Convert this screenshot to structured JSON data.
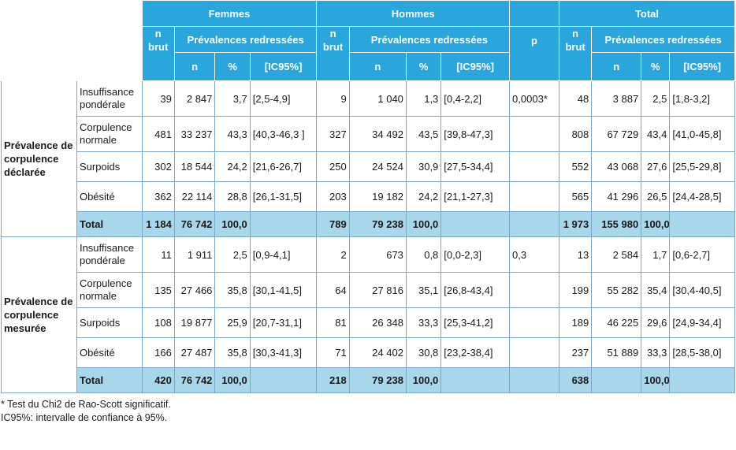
{
  "headers": {
    "femmes": "Femmes",
    "hommes": "Hommes",
    "total": "Total",
    "n_brut_top": "n",
    "n_brut_bottom": "brut",
    "prev_redressees": "Prévalences redressées",
    "p": "p",
    "n": "n",
    "pct": "%",
    "ic": "[IC95%]"
  },
  "groups": [
    {
      "label": "Prévalence de corpulence déclarée",
      "rows": [
        {
          "cat": "Insuffisance pondérale",
          "f_brut": "39",
          "f_n": "2 847",
          "f_pct": "3,7",
          "f_ic": "[2,5-4,9]",
          "h_brut": "9",
          "h_n": "1 040",
          "h_pct": "1,3",
          "h_ic": "[0,4-2,2]",
          "p": "0,0003*",
          "t_brut": "48",
          "t_n": "3 887",
          "t_pct": "2,5",
          "t_ic": "[1,8-3,2]"
        },
        {
          "cat": "Corpulence normale",
          "f_brut": "481",
          "f_n": "33 237",
          "f_pct": "43,3",
          "f_ic": "[40,3-46,3 ]",
          "h_brut": "327",
          "h_n": "34 492",
          "h_pct": "43,5",
          "h_ic": "[39,8-47,3]",
          "p": "",
          "t_brut": "808",
          "t_n": "67 729",
          "t_pct": "43,4",
          "t_ic": "[41,0-45,8]"
        },
        {
          "cat": "Surpoids",
          "f_brut": "302",
          "f_n": "18 544",
          "f_pct": "24,2",
          "f_ic": "[21,6-26,7]",
          "h_brut": "250",
          "h_n": "24 524",
          "h_pct": "30,9",
          "h_ic": "[27,5-34,4]",
          "p": "",
          "t_brut": "552",
          "t_n": "43 068",
          "t_pct": "27,6",
          "t_ic": "[25,5-29,8]"
        },
        {
          "cat": "Obésité",
          "f_brut": "362",
          "f_n": "22 114",
          "f_pct": "28,8",
          "f_ic": "[26,1-31,5]",
          "h_brut": "203",
          "h_n": "19 182",
          "h_pct": "24,2",
          "h_ic": "[21,1-27,3]",
          "p": "",
          "t_brut": "565",
          "t_n": "41 296",
          "t_pct": "26,5",
          "t_ic": "[24,4-28,5]"
        }
      ],
      "total": {
        "cat": "Total",
        "f_brut": "1 184",
        "f_n": "76 742",
        "f_pct": "100,0",
        "f_ic": "",
        "h_brut": "789",
        "h_n": "79 238",
        "h_pct": "100,0",
        "h_ic": "",
        "p": "",
        "t_brut": "1 973",
        "t_n": "155 980",
        "t_pct": "100,0",
        "t_ic": ""
      }
    },
    {
      "label": "Prévalence de corpulence mesurée",
      "rows": [
        {
          "cat": "Insuffisance pondérale",
          "f_brut": "11",
          "f_n": "1 911",
          "f_pct": "2,5",
          "f_ic": "[0,9-4,1]",
          "h_brut": "2",
          "h_n": "673",
          "h_pct": "0,8",
          "h_ic": "[0,0-2,3]",
          "p": "0,3",
          "t_brut": "13",
          "t_n": "2 584",
          "t_pct": "1,7",
          "t_ic": "[0,6-2,7]"
        },
        {
          "cat": "Corpulence normale",
          "f_brut": "135",
          "f_n": "27 466",
          "f_pct": "35,8",
          "f_ic": "[30,1-41,5]",
          "h_brut": "64",
          "h_n": "27 816",
          "h_pct": "35,1",
          "h_ic": "[26,8-43,4]",
          "p": "",
          "t_brut": "199",
          "t_n": "55 282",
          "t_pct": "35,4",
          "t_ic": "[30,4-40,5]"
        },
        {
          "cat": "Surpoids",
          "f_brut": "108",
          "f_n": "19 877",
          "f_pct": "25,9",
          "f_ic": "[20,7-31,1]",
          "h_brut": "81",
          "h_n": "26 348",
          "h_pct": "33,3",
          "h_ic": "[25,3-41,2]",
          "p": "",
          "t_brut": "189",
          "t_n": "46 225",
          "t_pct": "29,6",
          "t_ic": "[24,9-34,4]"
        },
        {
          "cat": "Obésité",
          "f_brut": "166",
          "f_n": "27 487",
          "f_pct": "35,8",
          "f_ic": "[30,3-41,3]",
          "h_brut": "71",
          "h_n": "24 402",
          "h_pct": "30,8",
          "h_ic": "[23,2-38,4]",
          "p": "",
          "t_brut": "237",
          "t_n": "51 889",
          "t_pct": "33,3",
          "t_ic": "[28,5-38,0]"
        }
      ],
      "total": {
        "cat": "Total",
        "f_brut": "420",
        "f_n": "76 742",
        "f_pct": "100,0",
        "f_ic": "",
        "h_brut": "218",
        "h_n": "79 238",
        "h_pct": "100,0",
        "h_ic": "",
        "p": "",
        "t_brut": "638",
        "t_n": "",
        "t_pct": "100,0",
        "t_ic": ""
      }
    }
  ],
  "notes": [
    "* Test du Chi2 de Rao-Scott significatif.",
    "IC95%: intervalle de confiance à 95%."
  ],
  "colors": {
    "header_bg": "#2aa6dc",
    "total_row_bg": "#a8d6ea",
    "grid_line": "#7fa7c9"
  }
}
